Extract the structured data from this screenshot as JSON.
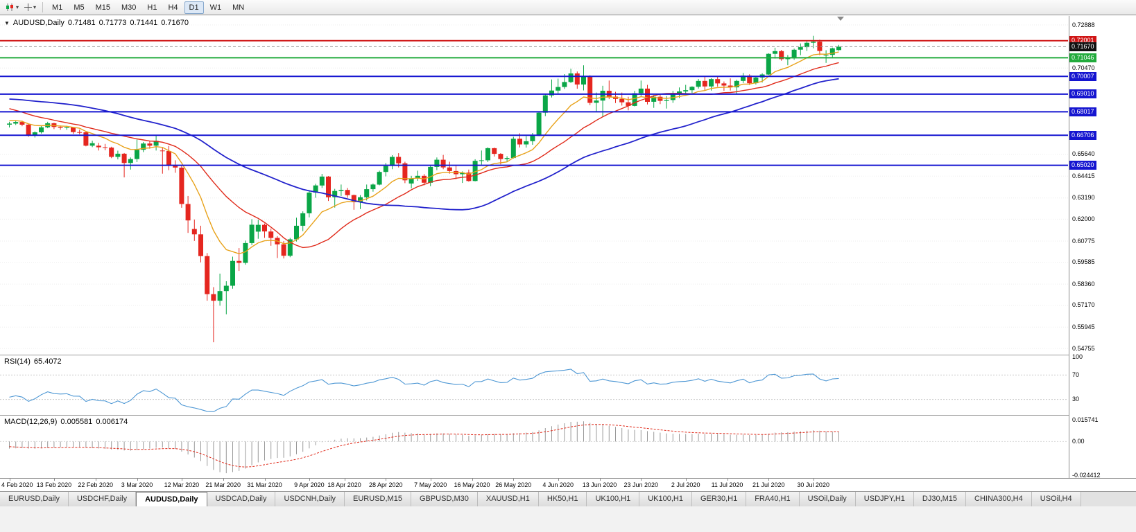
{
  "toolbar": {
    "timeframes": [
      "M1",
      "M5",
      "M15",
      "M30",
      "H1",
      "H4",
      "D1",
      "W1",
      "MN"
    ],
    "active": "D1"
  },
  "chart": {
    "symbol_title": "AUDUSD,Daily",
    "ohlc": {
      "open": "0.71481",
      "high": "0.71773",
      "low": "0.71441",
      "close": "0.71670"
    }
  },
  "price_axis": {
    "ticks": [
      "0.72888",
      "0.70470",
      "0.65640",
      "0.64415",
      "0.63190",
      "0.62000",
      "0.60775",
      "0.59585",
      "0.58360",
      "0.57170",
      "0.55945",
      "0.54755"
    ]
  },
  "hlines": [
    {
      "price": 0.72001,
      "label": "0.72001",
      "color": "#d01515",
      "width": 2,
      "box": "#d01515"
    },
    {
      "price": 0.7167,
      "label": "0.71670",
      "color": "#9a9a9a",
      "width": 1,
      "dashed": true,
      "box": "#111111"
    },
    {
      "price": 0.71046,
      "label": "0.71046",
      "color": "#22ab3c",
      "width": 2,
      "box": "#22ab3c"
    },
    {
      "price": 0.70007,
      "label": "0.70007",
      "color": "#1515d0",
      "width": 2,
      "box": "#1515d0"
    },
    {
      "price": 0.6901,
      "label": "0.69010",
      "color": "#1515d0",
      "width": 2,
      "box": "#1515d0"
    },
    {
      "price": 0.68017,
      "label": "0.68017",
      "color": "#1515d0",
      "width": 2,
      "box": "#1515d0"
    },
    {
      "price": 0.66706,
      "label": "0.66706",
      "color": "#1515d0",
      "width": 2,
      "box": "#1515d0"
    },
    {
      "price": 0.6502,
      "label": "0.65020",
      "color": "#1515d0",
      "width": 2,
      "box": "#1515d0"
    }
  ],
  "chart_data": {
    "type": "candlestick",
    "symbol": "AUDUSD",
    "timeframe": "Daily",
    "up_color": "#0aa647",
    "down_color": "#e5261f",
    "price_range": {
      "top": 0.73393,
      "bottom": 0.54405
    },
    "pre_closes": [
      0.6805,
      0.682,
      0.6838,
      0.683,
      0.6845,
      0.685,
      0.6862,
      0.6855,
      0.687,
      0.6885,
      0.688,
      0.6895,
      0.6905,
      0.69,
      0.6915,
      0.6925,
      0.692,
      0.6935,
      0.6945,
      0.696,
      0.6985,
      0.7,
      0.6995,
      0.6985,
      0.7,
      0.698,
      0.6952,
      0.694,
      0.6925,
      0.6905,
      0.6895,
      0.688,
      0.687,
      0.6885,
      0.6868,
      0.6845,
      0.683,
      0.681,
      0.6825,
      0.68,
      0.6775,
      0.6762,
      0.674,
      0.672,
      0.6692,
      0.669
    ],
    "candles": [
      [
        0.673,
        0.6746,
        0.6714,
        0.6736
      ],
      [
        0.6736,
        0.6755,
        0.6728,
        0.6745
      ],
      [
        0.6745,
        0.6752,
        0.6721,
        0.673
      ],
      [
        0.673,
        0.6733,
        0.6662,
        0.667
      ],
      [
        0.667,
        0.6692,
        0.6658,
        0.6687
      ],
      [
        0.6687,
        0.6722,
        0.668,
        0.6715
      ],
      [
        0.6715,
        0.6746,
        0.671,
        0.6738
      ],
      [
        0.6738,
        0.6741,
        0.6705,
        0.6717
      ],
      [
        0.6717,
        0.6725,
        0.6701,
        0.6712
      ],
      [
        0.6712,
        0.6723,
        0.6701,
        0.6714
      ],
      [
        0.6714,
        0.6716,
        0.6678,
        0.6688
      ],
      [
        0.6688,
        0.6702,
        0.6676,
        0.6687
      ],
      [
        0.6687,
        0.669,
        0.6608,
        0.6612
      ],
      [
        0.6612,
        0.664,
        0.6604,
        0.6626
      ],
      [
        0.6612,
        0.6628,
        0.6585,
        0.6603
      ],
      [
        0.6603,
        0.6622,
        0.6586,
        0.6601
      ],
      [
        0.6601,
        0.6606,
        0.6542,
        0.6549
      ],
      [
        0.6549,
        0.6584,
        0.6535,
        0.6567
      ],
      [
        0.6567,
        0.6571,
        0.6434,
        0.6515
      ],
      [
        0.6515,
        0.6546,
        0.6478,
        0.6537
      ],
      [
        0.6537,
        0.6646,
        0.652,
        0.6589
      ],
      [
        0.6589,
        0.6633,
        0.6576,
        0.6624
      ],
      [
        0.6624,
        0.6637,
        0.6595,
        0.6612
      ],
      [
        0.6612,
        0.667,
        0.6585,
        0.6639
      ],
      [
        0.6585,
        0.66,
        0.6455,
        0.6582
      ],
      [
        0.6582,
        0.661,
        0.6475,
        0.65
      ],
      [
        0.65,
        0.653,
        0.646,
        0.6489
      ],
      [
        0.6489,
        0.65,
        0.6264,
        0.6285
      ],
      [
        0.6285,
        0.633,
        0.6123,
        0.6193
      ],
      [
        0.6145,
        0.6198,
        0.6078,
        0.6115
      ],
      [
        0.6115,
        0.6163,
        0.5958,
        0.5993
      ],
      [
        0.5993,
        0.601,
        0.5743,
        0.578
      ],
      [
        0.578,
        0.5819,
        0.551,
        0.5743
      ],
      [
        0.5743,
        0.5895,
        0.5715,
        0.5797
      ],
      [
        0.5797,
        0.5852,
        0.5667,
        0.5827
      ],
      [
        0.5827,
        0.599,
        0.581,
        0.5966
      ],
      [
        0.5966,
        0.6038,
        0.591,
        0.5955
      ],
      [
        0.5955,
        0.608,
        0.5945,
        0.6066
      ],
      [
        0.6066,
        0.62,
        0.6055,
        0.6169
      ],
      [
        0.613,
        0.6197,
        0.609,
        0.6168
      ],
      [
        0.6168,
        0.6176,
        0.6095,
        0.6131
      ],
      [
        0.6131,
        0.6148,
        0.6051,
        0.6095
      ],
      [
        0.6095,
        0.6105,
        0.5982,
        0.6059
      ],
      [
        0.6059,
        0.6077,
        0.598,
        0.5995
      ],
      [
        0.5995,
        0.6095,
        0.5987,
        0.6087
      ],
      [
        0.6087,
        0.6208,
        0.6075,
        0.6163
      ],
      [
        0.6163,
        0.6244,
        0.6133,
        0.6233
      ],
      [
        0.6233,
        0.6363,
        0.621,
        0.6349
      ],
      [
        0.6349,
        0.6398,
        0.632,
        0.6389
      ],
      [
        0.6389,
        0.6454,
        0.6375,
        0.6439
      ],
      [
        0.6439,
        0.6442,
        0.6302,
        0.6323
      ],
      [
        0.6323,
        0.637,
        0.6265,
        0.6358
      ],
      [
        0.6358,
        0.6394,
        0.633,
        0.6364
      ],
      [
        0.6364,
        0.6375,
        0.632,
        0.6335
      ],
      [
        0.6335,
        0.6338,
        0.6253,
        0.6295
      ],
      [
        0.6295,
        0.6335,
        0.6257,
        0.6323
      ],
      [
        0.6323,
        0.6394,
        0.6305,
        0.6368
      ],
      [
        0.6368,
        0.64,
        0.6354,
        0.6394
      ],
      [
        0.6394,
        0.6472,
        0.639,
        0.6465
      ],
      [
        0.6465,
        0.6515,
        0.644,
        0.6498
      ],
      [
        0.6498,
        0.6559,
        0.648,
        0.6549
      ],
      [
        0.6549,
        0.657,
        0.649,
        0.6513
      ],
      [
        0.6513,
        0.6522,
        0.6402,
        0.6418
      ],
      [
        0.64,
        0.6443,
        0.6373,
        0.6428
      ],
      [
        0.6428,
        0.6472,
        0.6415,
        0.6443
      ],
      [
        0.6443,
        0.6453,
        0.639,
        0.6404
      ],
      [
        0.6404,
        0.65,
        0.6385,
        0.6493
      ],
      [
        0.6493,
        0.6546,
        0.6475,
        0.6533
      ],
      [
        0.6533,
        0.656,
        0.648,
        0.649
      ],
      [
        0.649,
        0.6522,
        0.6455,
        0.647
      ],
      [
        0.647,
        0.6502,
        0.6424,
        0.6452
      ],
      [
        0.6452,
        0.6468,
        0.6403,
        0.6461
      ],
      [
        0.6461,
        0.6478,
        0.641,
        0.6414
      ],
      [
        0.6414,
        0.6536,
        0.6412,
        0.6527
      ],
      [
        0.6527,
        0.6585,
        0.6506,
        0.653
      ],
      [
        0.653,
        0.6603,
        0.652,
        0.6598
      ],
      [
        0.6598,
        0.6601,
        0.6551,
        0.6566
      ],
      [
        0.6566,
        0.657,
        0.6507,
        0.6537
      ],
      [
        0.6537,
        0.6553,
        0.652,
        0.6543
      ],
      [
        0.6543,
        0.6662,
        0.654,
        0.6651
      ],
      [
        0.6651,
        0.6681,
        0.6602,
        0.6619
      ],
      [
        0.6619,
        0.6666,
        0.6601,
        0.6637
      ],
      [
        0.6637,
        0.6683,
        0.6617,
        0.6667
      ],
      [
        0.6667,
        0.6802,
        0.6666,
        0.6797
      ],
      [
        0.6797,
        0.6899,
        0.6778,
        0.6894
      ],
      [
        0.6894,
        0.6983,
        0.6882,
        0.6921
      ],
      [
        0.6921,
        0.6988,
        0.6905,
        0.6941
      ],
      [
        0.6941,
        0.7013,
        0.693,
        0.6969
      ],
      [
        0.6969,
        0.7043,
        0.6963,
        0.7017
      ],
      [
        0.7017,
        0.7028,
        0.6931,
        0.6955
      ],
      [
        0.6955,
        0.7063,
        0.6922,
        0.7
      ],
      [
        0.7,
        0.7007,
        0.6839,
        0.6852
      ],
      [
        0.6852,
        0.691,
        0.68,
        0.6865
      ],
      [
        0.6865,
        0.6948,
        0.6776,
        0.692
      ],
      [
        0.692,
        0.6977,
        0.6873,
        0.6887
      ],
      [
        0.6887,
        0.6914,
        0.6851,
        0.6874
      ],
      [
        0.6874,
        0.691,
        0.6837,
        0.6855
      ],
      [
        0.6855,
        0.6886,
        0.681,
        0.6835
      ],
      [
        0.6835,
        0.6919,
        0.6832,
        0.6906
      ],
      [
        0.6906,
        0.6977,
        0.689,
        0.6932
      ],
      [
        0.6932,
        0.6953,
        0.6843,
        0.6858
      ],
      [
        0.6858,
        0.6896,
        0.6824,
        0.6886
      ],
      [
        0.6886,
        0.6902,
        0.6845,
        0.6863
      ],
      [
        0.6863,
        0.689,
        0.682,
        0.6868
      ],
      [
        0.6868,
        0.6919,
        0.6852,
        0.6903
      ],
      [
        0.6903,
        0.6938,
        0.6879,
        0.6916
      ],
      [
        0.6916,
        0.6953,
        0.6902,
        0.6923
      ],
      [
        0.6923,
        0.6945,
        0.6907,
        0.6942
      ],
      [
        0.6942,
        0.6986,
        0.6932,
        0.6975
      ],
      [
        0.6975,
        0.6998,
        0.6922,
        0.6944
      ],
      [
        0.6944,
        0.699,
        0.6921,
        0.6985
      ],
      [
        0.6985,
        0.7,
        0.6943,
        0.6961
      ],
      [
        0.6961,
        0.6972,
        0.692,
        0.6949
      ],
      [
        0.6949,
        0.6989,
        0.6921,
        0.6939
      ],
      [
        0.6939,
        0.6982,
        0.6902,
        0.6975
      ],
      [
        0.6975,
        0.702,
        0.6963,
        0.7005
      ],
      [
        0.7005,
        0.7012,
        0.6952,
        0.6962
      ],
      [
        0.6962,
        0.7001,
        0.6955,
        0.6994
      ],
      [
        0.6994,
        0.7018,
        0.6966,
        0.7011
      ],
      [
        0.7011,
        0.713,
        0.7008,
        0.7127
      ],
      [
        0.7127,
        0.7161,
        0.71,
        0.7142
      ],
      [
        0.7142,
        0.7149,
        0.7088,
        0.7097
      ],
      [
        0.7097,
        0.712,
        0.7063,
        0.7102
      ],
      [
        0.7102,
        0.7156,
        0.7093,
        0.715
      ],
      [
        0.715,
        0.7185,
        0.7119,
        0.7164
      ],
      [
        0.7164,
        0.7197,
        0.7143,
        0.7189
      ],
      [
        0.7189,
        0.7228,
        0.7158,
        0.7195
      ],
      [
        0.7195,
        0.7206,
        0.7119,
        0.7143
      ],
      [
        0.712,
        0.7147,
        0.7076,
        0.7121
      ],
      [
        0.7121,
        0.7162,
        0.7102,
        0.7158
      ],
      [
        0.71481,
        0.71773,
        0.71441,
        0.7167
      ]
    ],
    "x_labels": [
      {
        "text": "4 Feb 2020",
        "i": 0
      },
      {
        "text": "13 Feb 2020",
        "i": 7
      },
      {
        "text": "22 Feb 2020",
        "i": 13.5
      },
      {
        "text": "3 Mar 2020",
        "i": 20
      },
      {
        "text": "12 Mar 2020",
        "i": 27
      },
      {
        "text": "21 Mar 2020",
        "i": 33.5
      },
      {
        "text": "31 Mar 2020",
        "i": 40
      },
      {
        "text": "9 Apr 2020",
        "i": 47
      },
      {
        "text": "18 Apr 2020",
        "i": 52.5
      },
      {
        "text": "28 Apr 2020",
        "i": 59
      },
      {
        "text": "7 May 2020",
        "i": 66
      },
      {
        "text": "16 May 2020",
        "i": 72.5
      },
      {
        "text": "26 May 2020",
        "i": 79
      },
      {
        "text": "4 Jun 2020",
        "i": 86
      },
      {
        "text": "13 Jun 2020",
        "i": 92.5
      },
      {
        "text": "23 Jun 2020",
        "i": 99
      },
      {
        "text": "2 Jul 2020",
        "i": 106
      },
      {
        "text": "11 Jul 2020",
        "i": 112.5
      },
      {
        "text": "21 Jul 2020",
        "i": 119
      },
      {
        "text": "30 Jul 2020",
        "i": 126
      }
    ],
    "moving_averages": [
      {
        "period": 10,
        "method": "ema",
        "color": "#e8a21a",
        "width": 1.4
      },
      {
        "period": 20,
        "method": "sma",
        "color": "#e02a1a",
        "width": 1.4
      },
      {
        "period": 45,
        "method": "sma",
        "color": "#2222cc",
        "width": 1.8
      }
    ]
  },
  "rsi": {
    "label": "RSI(14)",
    "value": "65.4072",
    "period": 14,
    "color": "#4d97d4",
    "levels": [
      {
        "text": "100",
        "v": 100
      },
      {
        "text": "70",
        "v": 70
      },
      {
        "text": "30",
        "v": 30
      }
    ]
  },
  "macd": {
    "label": "MACD(12,26,9)",
    "value_main": "0.005581",
    "value_signal": "0.006174",
    "fast": 12,
    "slow": 26,
    "signal": 9,
    "hist_color": "#999999",
    "signal_color": "#e02a1a",
    "scale_max": 0.015741,
    "scale_min": -0.024412,
    "axis": [
      {
        "text": "0.015741",
        "v": 0.015741
      },
      {
        "text": "0.00",
        "v": 0
      },
      {
        "text": "-0.024412",
        "v": -0.024412
      }
    ]
  },
  "tabs": {
    "active_index": 2,
    "items": [
      {
        "label": "EURUSD,Daily"
      },
      {
        "label": "USDCHF,Daily"
      },
      {
        "label": "AUDUSD,Daily"
      },
      {
        "label": "USDCAD,Daily"
      },
      {
        "label": "USDCNH,Daily"
      },
      {
        "label": "EURUSD,M15"
      },
      {
        "label": "GBPUSD,M30"
      },
      {
        "label": "XAUUSD,H1"
      },
      {
        "label": "HK50,H1"
      },
      {
        "label": "UK100,H1"
      },
      {
        "label": "UK100,H1"
      },
      {
        "label": "GER30,H1"
      },
      {
        "label": "FRA40,H1"
      },
      {
        "label": "USOil,Daily"
      },
      {
        "label": "USDJPY,H1"
      },
      {
        "label": "DJ30,M15"
      },
      {
        "label": "CHINA300,H4"
      },
      {
        "label": "USOil,H4"
      }
    ]
  }
}
